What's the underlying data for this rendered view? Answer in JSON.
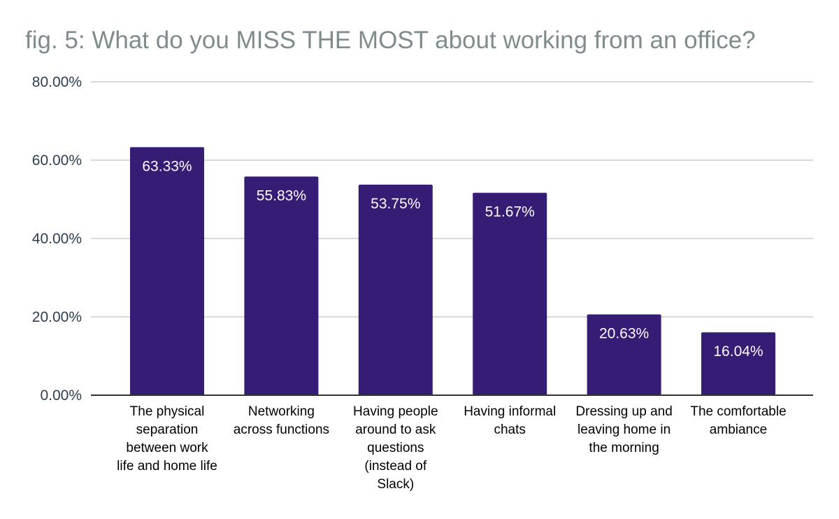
{
  "chart_data": {
    "type": "bar",
    "title": "fig. 5: What do you MISS THE MOST about working from an office?",
    "xlabel": "",
    "ylabel": "",
    "categories": [
      [
        "The physical",
        "separation",
        "between work",
        "life and home life"
      ],
      [
        "Networking",
        "across functions"
      ],
      [
        "Having people",
        "around to ask",
        "questions",
        "(instead of",
        "Slack)"
      ],
      [
        "Having informal",
        "chats"
      ],
      [
        "Dressing up and",
        "leaving home in",
        "the morning"
      ],
      [
        "The comfortable",
        "ambiance"
      ]
    ],
    "values": [
      63.33,
      55.83,
      53.75,
      51.67,
      20.63,
      16.04
    ],
    "data_labels": [
      "63.33%",
      "55.83%",
      "53.75%",
      "51.67%",
      "20.63%",
      "16.04%"
    ],
    "ylim": [
      0,
      80
    ],
    "yticks": [
      0,
      20,
      40,
      60,
      80
    ],
    "ytick_labels": [
      "0.00%",
      "20.00%",
      "40.00%",
      "60.00%",
      "80.00%"
    ],
    "grid": true,
    "legend": "none",
    "bar_color": "#351c75",
    "grid_color": "#cccccc",
    "axis_color": "#333333",
    "title_color": "#7f8c8d"
  }
}
